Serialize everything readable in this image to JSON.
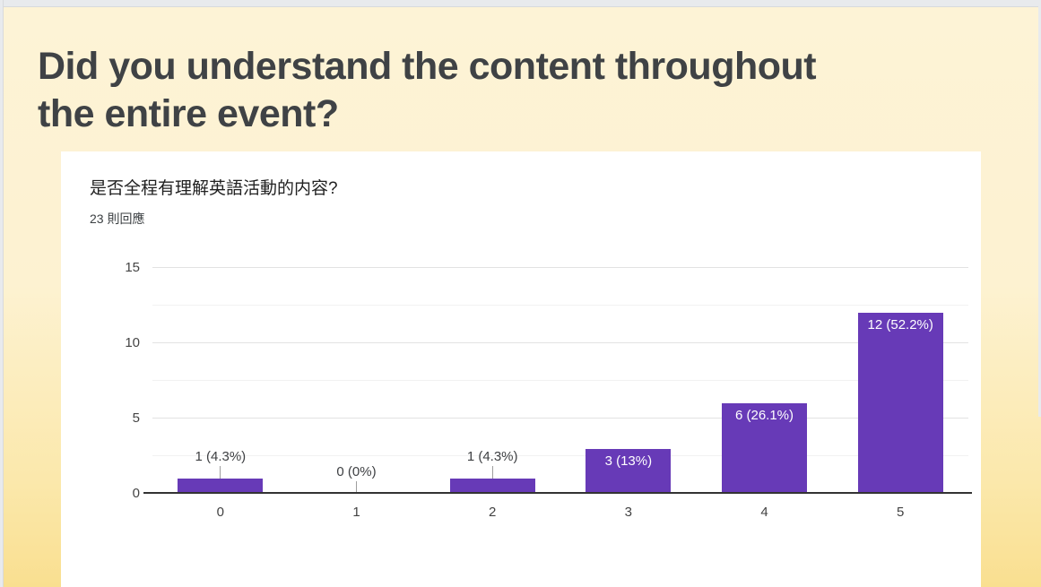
{
  "heading": {
    "lines": [
      "Did you understand the content throughout",
      "the entire event?"
    ]
  },
  "card": {
    "question": "是否全程有理解英語活動的内容?",
    "responses_count": "23 則回應"
  },
  "chart_data": {
    "type": "bar",
    "title": "是否全程有理解英語活動的内容?",
    "subtitle": "23 則回應",
    "categories": [
      "0",
      "1",
      "2",
      "3",
      "4",
      "5"
    ],
    "values": [
      1,
      0,
      1,
      3,
      6,
      12
    ],
    "bar_labels": [
      "1 (4.3%)",
      "0 (0%)",
      "1 (4.3%)",
      "3 (13%)",
      "6 (26.1%)",
      "12 (52.2%)"
    ],
    "y_ticks": [
      0,
      5,
      10,
      15
    ],
    "ylim": [
      0,
      15
    ],
    "grid": true,
    "legend": "none",
    "bar_color": "#673ab7",
    "background_color": "#ffffff"
  },
  "colors": {
    "slide_gradient_top": "#fdf3d6",
    "slide_gradient_bottom": "#f9df90",
    "title_text": "#3f4245",
    "bar": "#673ab7"
  }
}
